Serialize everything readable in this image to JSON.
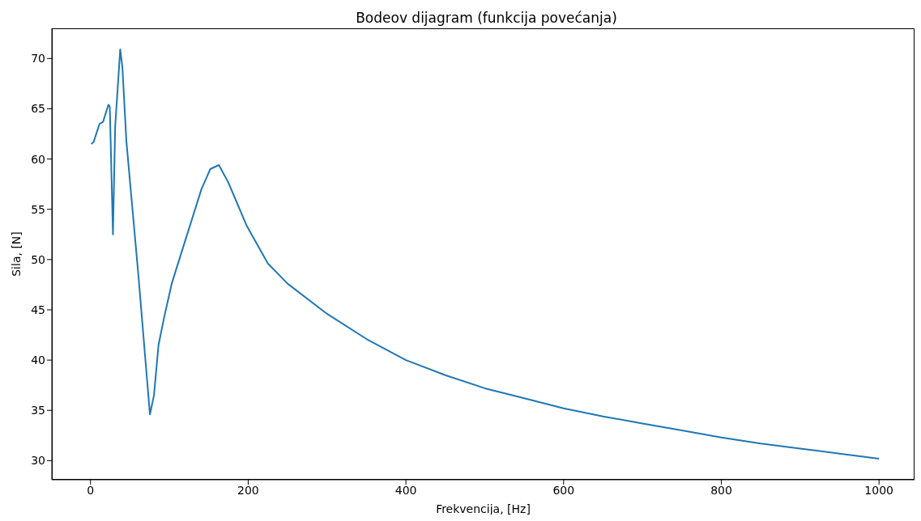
{
  "chart_data": {
    "type": "line",
    "title": "Bodeov dijagram (funkcija povećanja)",
    "xlabel": "Frekvencija, [Hz]",
    "ylabel": "Sila, [N]",
    "x": [
      1,
      4,
      11.5,
      16,
      22.7,
      24.5,
      28.5,
      31.3,
      37.7,
      40.5,
      45.5,
      60.8,
      75.4,
      80.5,
      86.3,
      93,
      103,
      117,
      140.7,
      151.9,
      162.8,
      174.6,
      198.5,
      225,
      250,
      300,
      350,
      400,
      450,
      500,
      550,
      600,
      650,
      700,
      750,
      800,
      850,
      900,
      950,
      1000
    ],
    "series": [
      {
        "color": "#1f77b4",
        "values": [
          61.5,
          61.7,
          63.5,
          63.7,
          65.4,
          65.2,
          52.5,
          63.2,
          70.9,
          69.1,
          61.8,
          48.4,
          34.6,
          36.5,
          41.5,
          44.1,
          47.6,
          51.1,
          57.0,
          59.0,
          59.4,
          57.7,
          53.3,
          49.6,
          47.6,
          44.6,
          42.1,
          40.0,
          38.5,
          37.2,
          36.2,
          35.2,
          34.4,
          33.7,
          33.0,
          32.3,
          31.7,
          31.2,
          30.7,
          30.2
        ]
      }
    ],
    "xlim": [
      -49,
      1045
    ],
    "ylim": [
      28.1,
      73.0
    ],
    "xticks": [
      0,
      200,
      400,
      600,
      800,
      1000
    ],
    "yticks": [
      30,
      35,
      40,
      45,
      50,
      55,
      60,
      65,
      70
    ],
    "grid": false,
    "legend": false,
    "marker": "none",
    "line_style": "solid"
  }
}
